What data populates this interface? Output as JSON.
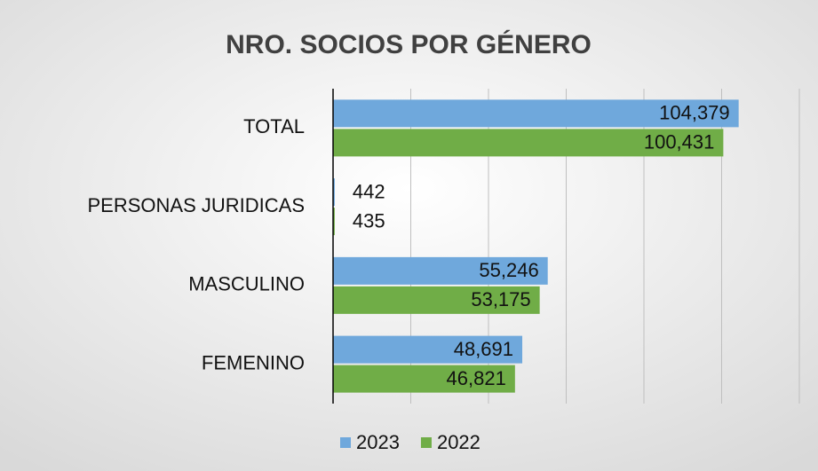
{
  "chart_data": {
    "type": "bar",
    "orientation": "horizontal",
    "title": "NRO. SOCIOS POR GÉNERO",
    "categories": [
      "TOTAL",
      "PERSONAS JURIDICAS",
      "MASCULINO",
      "FEMENINO"
    ],
    "series": [
      {
        "name": "2023",
        "color": "#6fa8dc",
        "values": [
          104379,
          442,
          55246,
          48691
        ],
        "value_labels": [
          "104,379",
          "442",
          "55,246",
          "48,691"
        ]
      },
      {
        "name": "2022",
        "color": "#70ad47",
        "values": [
          100431,
          435,
          53175,
          46821
        ],
        "value_labels": [
          "100,431",
          "435",
          "53,175",
          "46,821"
        ]
      }
    ],
    "xlim": [
      0,
      120000
    ],
    "xticks": [
      0,
      20000,
      40000,
      60000,
      80000,
      100000,
      120000
    ],
    "grid": true,
    "legend": "bottom"
  }
}
